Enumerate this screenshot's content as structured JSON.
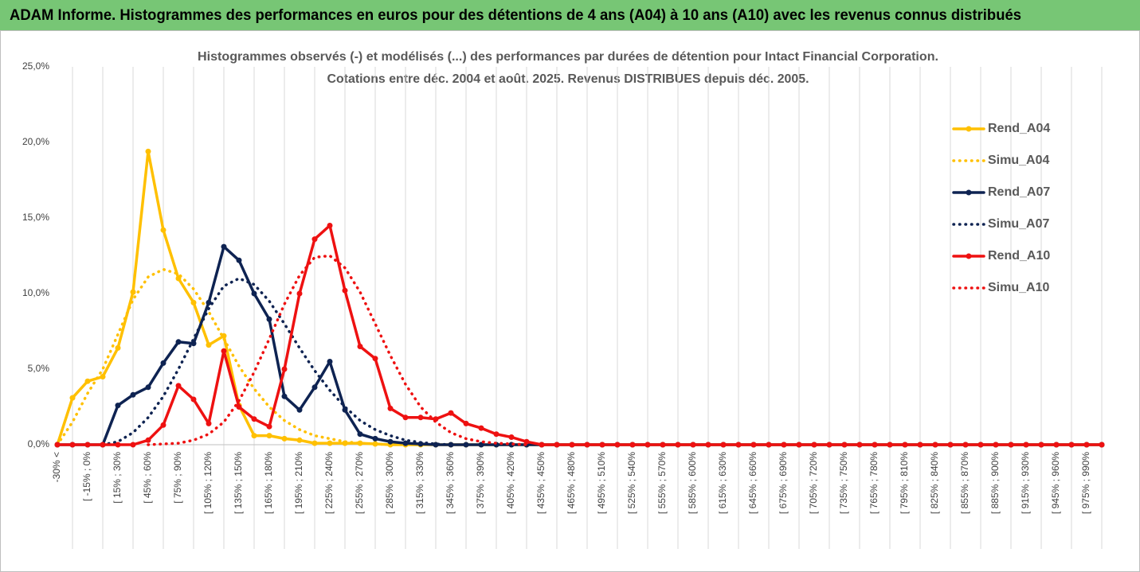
{
  "header": "ADAM Informe. Histogrammes des performances en euros pour des détentions de 4 ans (A04) à 10 ans (A10) avec les revenus connus distribués",
  "chart_data": {
    "type": "line",
    "title": [
      "Histogrammes observés (-) et modélisés (...) des performances par durées de détention pour Intact Financial Corporation.",
      "Cotations entre déc. 2004 et août. 2025.  Revenus DISTRIBUES depuis déc. 2005."
    ],
    "categories": [
      "-30% <",
      null,
      "[ -15% ; 0%",
      null,
      "[ 15% ; 30%",
      null,
      "[ 45% ; 60%",
      null,
      "[ 75% ; 90%",
      null,
      "[ 105% ; 120%",
      null,
      "[ 135% ; 150%",
      null,
      "[ 165% ; 180%",
      null,
      "[ 195% ; 210%",
      null,
      "[ 225% ; 240%",
      null,
      "[ 255% ; 270%",
      null,
      "[ 285% ; 300%",
      null,
      "[ 315% ; 330%",
      null,
      "[ 345% ; 360%",
      null,
      "[ 375% ; 390%",
      null,
      "[ 405% ; 420%",
      null,
      "[ 435% ; 450%",
      null,
      "[ 465% ; 480%",
      null,
      "[ 495% ; 510%",
      null,
      "[ 525% ; 540%",
      null,
      "[ 555% ; 570%",
      null,
      "[ 585% ; 600%",
      null,
      "[ 615% ; 630%",
      null,
      "[ 645% ; 660%",
      null,
      "[ 675% ; 690%",
      null,
      "[ 705% ; 720%",
      null,
      "[ 735% ; 750%",
      null,
      "[ 765% ; 780%",
      null,
      "[ 795% ; 810%",
      null,
      "[ 825% ; 840%",
      null,
      "[ 855% ; 870%",
      null,
      "[ 885% ; 900%",
      null,
      "[ 915% ; 930%",
      null,
      "[ 945% ; 960%",
      null,
      "[ 975% ; 990%",
      null
    ],
    "series": [
      {
        "name": "Rend_A04",
        "color": "#ffc000",
        "line_style": "solid",
        "marker": true,
        "values": [
          0,
          3.1,
          4.2,
          4.5,
          6.4,
          10.1,
          19.4,
          14.2,
          11.0,
          9.4,
          6.6,
          7.2,
          2.6,
          0.6,
          0.6,
          0.4,
          0.3,
          0.1,
          0.1,
          0.1,
          0.1,
          0.05,
          0,
          0,
          0,
          0,
          0,
          0,
          0,
          0,
          0,
          0,
          0,
          0,
          0,
          0,
          0,
          0,
          0,
          0,
          0,
          0,
          0,
          0,
          0,
          0,
          0,
          0,
          0,
          0,
          0,
          0,
          0,
          0,
          0,
          0,
          0,
          0,
          0,
          0,
          0,
          0,
          0,
          0,
          0,
          0,
          0,
          0,
          0,
          0
        ]
      },
      {
        "name": "Simu_A04",
        "color": "#ffc000",
        "line_style": "dotted",
        "marker": false,
        "values": [
          0,
          1.5,
          3.4,
          5.0,
          7.3,
          9.6,
          11.1,
          11.6,
          11.3,
          10.3,
          8.8,
          7.0,
          5.2,
          3.7,
          2.5,
          1.6,
          1.0,
          0.6,
          0.4,
          0.2,
          0.1,
          0.05,
          0,
          null,
          null,
          null,
          null,
          null,
          null,
          null,
          null,
          null,
          null,
          null,
          null,
          null,
          null,
          null,
          null,
          null,
          null,
          null,
          null,
          null,
          null,
          null,
          null,
          null,
          null,
          null,
          null,
          null,
          null,
          null,
          null,
          null,
          null,
          null,
          null,
          null,
          null,
          null,
          null,
          null,
          null,
          null,
          null,
          null,
          null,
          null
        ]
      },
      {
        "name": "Rend_A07",
        "color": "#0e2352",
        "line_style": "solid",
        "marker": true,
        "values": [
          0,
          0,
          0,
          0,
          2.6,
          3.3,
          3.8,
          5.4,
          6.8,
          6.7,
          9.4,
          13.1,
          12.2,
          10.0,
          8.3,
          3.2,
          2.3,
          3.8,
          5.5,
          2.3,
          0.7,
          0.4,
          0.2,
          0.1,
          0.05,
          0,
          0,
          0,
          0,
          0,
          0,
          0,
          0,
          0,
          0,
          0,
          0,
          0,
          0,
          0,
          0,
          0,
          0,
          0,
          0,
          0,
          0,
          0,
          0,
          0,
          0,
          0,
          0,
          0,
          0,
          0,
          0,
          0,
          0,
          0,
          0,
          0,
          0,
          0,
          0,
          0,
          0,
          0,
          0,
          0
        ]
      },
      {
        "name": "Simu_A07",
        "color": "#0e2352",
        "line_style": "dotted",
        "marker": false,
        "values": [
          null,
          null,
          null,
          0,
          0.2,
          0.8,
          1.8,
          3.2,
          5.0,
          7.0,
          9.0,
          10.5,
          11.0,
          10.6,
          9.5,
          8.0,
          6.4,
          4.9,
          3.6,
          2.5,
          1.6,
          1.0,
          0.6,
          0.3,
          0.15,
          0.05,
          0,
          null,
          null,
          null,
          null,
          null,
          null,
          null,
          null,
          null,
          null,
          null,
          null,
          null,
          null,
          null,
          null,
          null,
          null,
          null,
          null,
          null,
          null,
          null,
          null,
          null,
          null,
          null,
          null,
          null,
          null,
          null,
          null,
          null,
          null,
          null,
          null,
          null,
          null,
          null,
          null,
          null,
          null,
          null
        ]
      },
      {
        "name": "Rend_A10",
        "color": "#ee1111",
        "line_style": "solid",
        "marker": true,
        "values": [
          0,
          0,
          0,
          0,
          0,
          0,
          0.3,
          1.3,
          3.9,
          3.0,
          1.4,
          6.2,
          2.5,
          1.7,
          1.2,
          5.0,
          10.0,
          13.6,
          14.5,
          10.2,
          6.5,
          5.7,
          2.4,
          1.8,
          1.8,
          1.7,
          2.1,
          1.4,
          1.1,
          0.7,
          0.5,
          0.2,
          0,
          0,
          0,
          0,
          0,
          0,
          0,
          0,
          0,
          0,
          0,
          0,
          0,
          0,
          0,
          0,
          0,
          0,
          0,
          0,
          0,
          0,
          0,
          0,
          0,
          0,
          0,
          0,
          0,
          0,
          0,
          0,
          0,
          0,
          0,
          0,
          0,
          0
        ]
      },
      {
        "name": "Simu_A10",
        "color": "#ee1111",
        "line_style": "dotted",
        "marker": false,
        "values": [
          null,
          null,
          null,
          null,
          null,
          null,
          0,
          0.05,
          0.1,
          0.3,
          0.7,
          1.5,
          2.9,
          4.8,
          7.0,
          9.3,
          11.2,
          12.4,
          12.5,
          11.7,
          10.1,
          8.0,
          5.9,
          4.0,
          2.5,
          1.5,
          0.8,
          0.4,
          0.2,
          0.1,
          0.05,
          0,
          null,
          null,
          null,
          null,
          null,
          null,
          null,
          null,
          null,
          null,
          null,
          null,
          null,
          null,
          null,
          null,
          null,
          null,
          null,
          null,
          null,
          null,
          null,
          null,
          null,
          null,
          null,
          null,
          null,
          null,
          null,
          null,
          null,
          null,
          null,
          null,
          null,
          null
        ]
      }
    ],
    "ylim": [
      0,
      25
    ],
    "yticks": [
      {
        "value": 0,
        "label": "0,0%"
      },
      {
        "value": 5,
        "label": "5,0%"
      },
      {
        "value": 10,
        "label": "10,0%"
      },
      {
        "value": 15,
        "label": "15,0%"
      },
      {
        "value": 20,
        "label": "20,0%"
      },
      {
        "value": 25,
        "label": "25,0%"
      }
    ],
    "grid": true,
    "legend": "right"
  }
}
